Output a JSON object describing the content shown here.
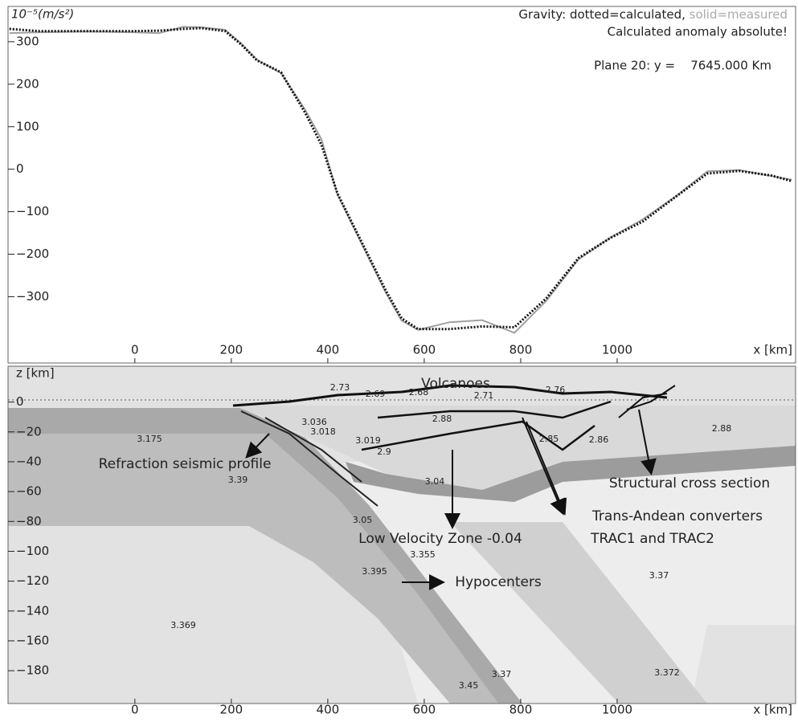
{
  "chart_data": [
    {
      "type": "line",
      "y_label": "10⁻⁵(m/s²)",
      "legend_title": "Gravity:",
      "note": "Calculated anomaly absolute!",
      "plane": "Plane 20: y =    7645.000 Km",
      "x_label": "x [km]",
      "xlim": [
        -263,
        1370
      ],
      "xticks": [
        0,
        200,
        400,
        600,
        800,
        1000
      ],
      "ylim": [
        -456,
        383
      ],
      "yticks": [
        300,
        200,
        100,
        0,
        {
          "value": -100,
          "label": "−100"
        },
        {
          "value": -200,
          "label": "−200"
        },
        {
          "value": -300,
          "label": "−300"
        }
      ],
      "x": [
        -260,
        -200,
        -100,
        0,
        50,
        100,
        137,
        187,
        220,
        253,
        303,
        353,
        387,
        420,
        470,
        520,
        553,
        587,
        653,
        720,
        787,
        853,
        920,
        987,
        1053,
        1120,
        1187,
        1253,
        1320,
        1362
      ],
      "series": [
        {
          "name": "dotted=calculated,",
          "color": "#111111",
          "style": "dotted",
          "values": [
            330,
            325,
            325,
            325,
            326,
            330,
            332,
            325,
            294,
            256,
            228,
            133,
            57,
            -57,
            -171,
            -285,
            -351,
            -376,
            -376,
            -370,
            -372,
            -304,
            -209,
            -161,
            -123,
            -66,
            -10,
            -4,
            -15,
            -28
          ]
        },
        {
          "name": "solid=measured",
          "color": "#a0a0a0",
          "style": "solid",
          "values": [
            320,
            322,
            324,
            322,
            320,
            335,
            334,
            328,
            296,
            258,
            226,
            140,
            70,
            -60,
            -175,
            -290,
            -356,
            -378,
            -360,
            -355,
            -385,
            -310,
            -212,
            -160,
            -118,
            -65,
            -5,
            -2,
            -16,
            -25
          ]
        }
      ]
    },
    {
      "type": "section",
      "y_label": "z [km]",
      "x_label": "x [km]",
      "xlim": [
        -263,
        1370
      ],
      "xticks": [
        0,
        200,
        400,
        600,
        800,
        1000
      ],
      "ylim": [
        -202,
        24
      ],
      "yticks": [
        0,
        {
          "value": -20,
          "label": "−20"
        },
        {
          "value": -40,
          "label": "−40"
        },
        {
          "value": -60,
          "label": "−60"
        },
        {
          "value": -80,
          "label": "−80"
        },
        {
          "value": -100,
          "label": "−100"
        },
        {
          "value": -120,
          "label": "−120"
        },
        {
          "value": -140,
          "label": "−140"
        },
        {
          "value": -160,
          "label": "−160"
        },
        {
          "value": -180,
          "label": "−180"
        }
      ],
      "densities": [
        3.175,
        3.39,
        3.05,
        3.355,
        3.395,
        3.369,
        3.45,
        3.37,
        3.372,
        3.37,
        3.04,
        2.88,
        2.73,
        2.69,
        2.68,
        2.71,
        2.76,
        2.85,
        2.86,
        2.88,
        3.036,
        3.018,
        3.019,
        2.9
      ],
      "annotations": [
        "Volcanoes",
        "Refraction seismic profile",
        "Structural cross section",
        "Trans-Andean converters",
        "TRAC1 and TRAC2",
        "Low Velocity Zone -0.04",
        "Hypocenters"
      ]
    }
  ]
}
